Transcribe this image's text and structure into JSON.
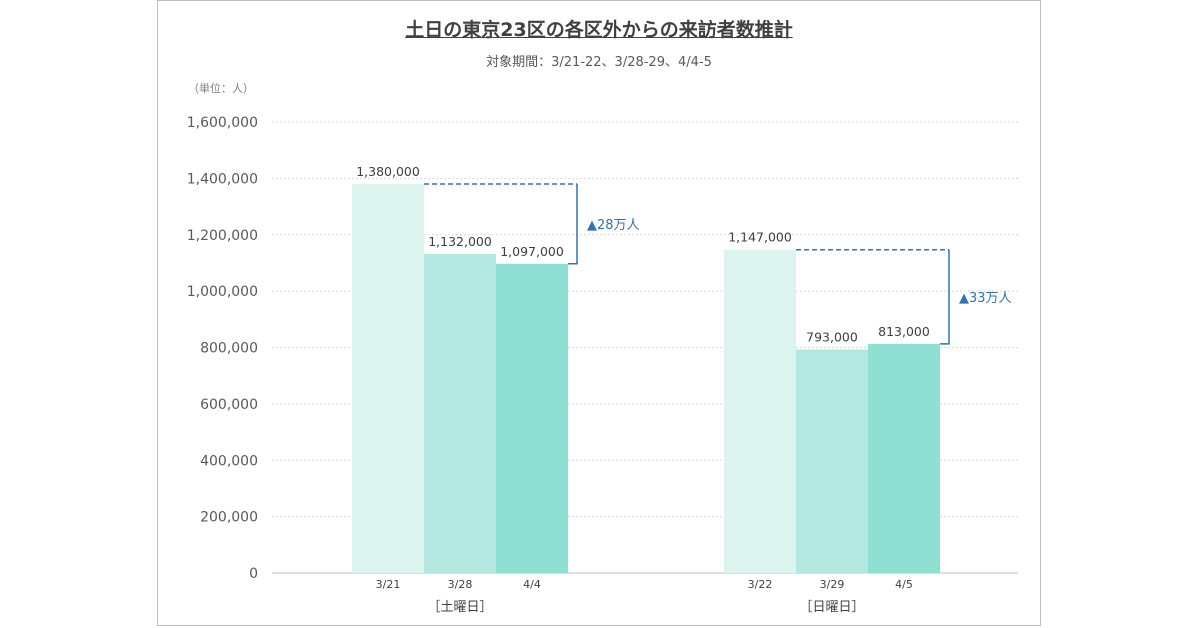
{
  "chart_data": {
    "type": "bar",
    "title": "土日の東京23区の各区外からの来訪者数推計",
    "subtitle": "対象期間：3/21-22、3/28-29、4/4-5",
    "unit_label": "（単位：人）",
    "ylim": [
      0,
      1600000
    ],
    "yticks": [
      "1,600,000",
      "1,400,000",
      "1,200,000",
      "1,000,000",
      "800,000",
      "600,000",
      "400,000",
      "200,000",
      "0"
    ],
    "ytick_values": [
      1600000,
      1400000,
      1200000,
      1000000,
      800000,
      600000,
      400000,
      200000,
      0
    ],
    "grid": true,
    "groups": [
      {
        "name": "［土曜日］",
        "categories": [
          "3/21",
          "3/28",
          "4/4"
        ],
        "values": [
          1380000,
          1132000,
          1097000
        ],
        "labels": [
          "1,380,000",
          "1,132,000",
          "1,097,000"
        ],
        "annotation": "▲28万人"
      },
      {
        "name": "［日曜日］",
        "categories": [
          "3/22",
          "3/29",
          "4/5"
        ],
        "values": [
          1147000,
          793000,
          813000
        ],
        "labels": [
          "1,147,000",
          "793,000",
          "813,000"
        ],
        "annotation": "▲33万人"
      }
    ],
    "colors": [
      "#dcf4ee",
      "#b3e9e0",
      "#8ee0d3"
    ],
    "annotation_color": "#2e75b6"
  }
}
